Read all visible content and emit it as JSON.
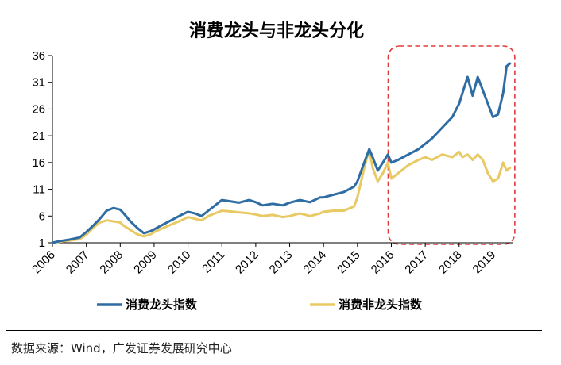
{
  "chart_data": {
    "type": "line",
    "title": "消费龙头与非龙头分化",
    "xlabel": "",
    "ylabel": "",
    "ylim": [
      1,
      36
    ],
    "xlim": [
      2006,
      2019.6
    ],
    "yticks": [
      1,
      6,
      11,
      16,
      21,
      26,
      31,
      36
    ],
    "xticks": [
      "2006",
      "2007",
      "2008",
      "2009",
      "2010",
      "2011",
      "2012",
      "2013",
      "2014",
      "2015",
      "2016",
      "2017",
      "2018",
      "2019"
    ],
    "grid": false,
    "legend_position": "bottom",
    "highlight_region": {
      "x": [
        2016.0,
        2019.55
      ],
      "y": [
        1,
        36.5
      ],
      "color": "#e23b3b",
      "style": "dashed"
    },
    "series": [
      {
        "name": "消费龙头指数",
        "color": "#2e6ca4",
        "x": [
          2006.0,
          2006.2,
          2006.5,
          2006.8,
          2007.0,
          2007.2,
          2007.4,
          2007.6,
          2007.8,
          2008.0,
          2008.1,
          2008.3,
          2008.5,
          2008.7,
          2008.9,
          2009.0,
          2009.2,
          2009.5,
          2009.8,
          2010.0,
          2010.2,
          2010.4,
          2010.6,
          2010.8,
          2011.0,
          2011.2,
          2011.5,
          2011.8,
          2012.0,
          2012.2,
          2012.5,
          2012.8,
          2013.0,
          2013.3,
          2013.6,
          2013.9,
          2014.0,
          2014.3,
          2014.6,
          2014.9,
          2015.0,
          2015.2,
          2015.35,
          2015.45,
          2015.6,
          2015.75,
          2015.9,
          2016.0,
          2016.2,
          2016.5,
          2016.8,
          2017.0,
          2017.2,
          2017.5,
          2017.8,
          2018.0,
          2018.1,
          2018.25,
          2018.4,
          2018.55,
          2018.7,
          2018.85,
          2019.0,
          2019.15,
          2019.3,
          2019.4,
          2019.5
        ],
        "values": [
          1.0,
          1.3,
          1.6,
          2.0,
          3.0,
          4.2,
          5.5,
          7.0,
          7.5,
          7.2,
          6.5,
          5.0,
          3.8,
          2.8,
          3.2,
          3.5,
          4.2,
          5.2,
          6.2,
          6.8,
          6.5,
          6.0,
          7.0,
          8.0,
          9.0,
          8.8,
          8.5,
          9.0,
          8.6,
          8.0,
          8.3,
          8.0,
          8.5,
          9.0,
          8.6,
          9.5,
          9.5,
          10.0,
          10.5,
          11.5,
          12.5,
          16.0,
          18.5,
          17.0,
          14.5,
          16.0,
          17.5,
          16.0,
          16.5,
          17.5,
          18.5,
          19.5,
          20.5,
          22.5,
          24.5,
          27.0,
          29.0,
          32.0,
          28.5,
          32.0,
          29.5,
          27.0,
          24.5,
          25.0,
          29.0,
          34.0,
          34.5
        ]
      },
      {
        "name": "消费非龙头指数",
        "color": "#e8c964",
        "x": [
          2006.0,
          2006.2,
          2006.5,
          2006.8,
          2007.0,
          2007.2,
          2007.4,
          2007.6,
          2007.8,
          2008.0,
          2008.1,
          2008.3,
          2008.5,
          2008.7,
          2008.9,
          2009.0,
          2009.2,
          2009.5,
          2009.8,
          2010.0,
          2010.2,
          2010.4,
          2010.6,
          2010.8,
          2011.0,
          2011.2,
          2011.5,
          2011.8,
          2012.0,
          2012.2,
          2012.5,
          2012.8,
          2013.0,
          2013.3,
          2013.6,
          2013.9,
          2014.0,
          2014.3,
          2014.6,
          2014.9,
          2015.0,
          2015.2,
          2015.35,
          2015.45,
          2015.6,
          2015.75,
          2015.9,
          2016.0,
          2016.2,
          2016.5,
          2016.8,
          2017.0,
          2017.2,
          2017.5,
          2017.8,
          2018.0,
          2018.1,
          2018.25,
          2018.4,
          2018.55,
          2018.7,
          2018.85,
          2019.0,
          2019.15,
          2019.3,
          2019.4,
          2019.5
        ],
        "values": [
          1.0,
          1.2,
          1.4,
          1.7,
          2.5,
          3.8,
          4.8,
          5.2,
          5.0,
          4.8,
          4.2,
          3.4,
          2.6,
          2.2,
          2.6,
          3.0,
          3.6,
          4.4,
          5.2,
          5.8,
          5.5,
          5.2,
          6.0,
          6.5,
          7.0,
          6.9,
          6.7,
          6.5,
          6.3,
          6.0,
          6.2,
          5.8,
          6.0,
          6.5,
          6.0,
          6.5,
          6.8,
          7.0,
          7.0,
          7.8,
          9.5,
          15.0,
          18.5,
          15.0,
          12.5,
          14.0,
          16.0,
          13.0,
          14.0,
          15.5,
          16.5,
          17.0,
          16.5,
          17.5,
          17.0,
          18.0,
          17.0,
          17.5,
          16.5,
          17.5,
          16.5,
          14.0,
          12.5,
          13.0,
          16.0,
          14.5,
          15.0
        ]
      }
    ]
  },
  "legend": {
    "items": [
      {
        "label": "消费龙头指数",
        "color": "#2e6ca4"
      },
      {
        "label": "消费非龙头指数",
        "color": "#e8c964"
      }
    ]
  },
  "source": "数据来源：Wind，广发证券发展研究中心"
}
